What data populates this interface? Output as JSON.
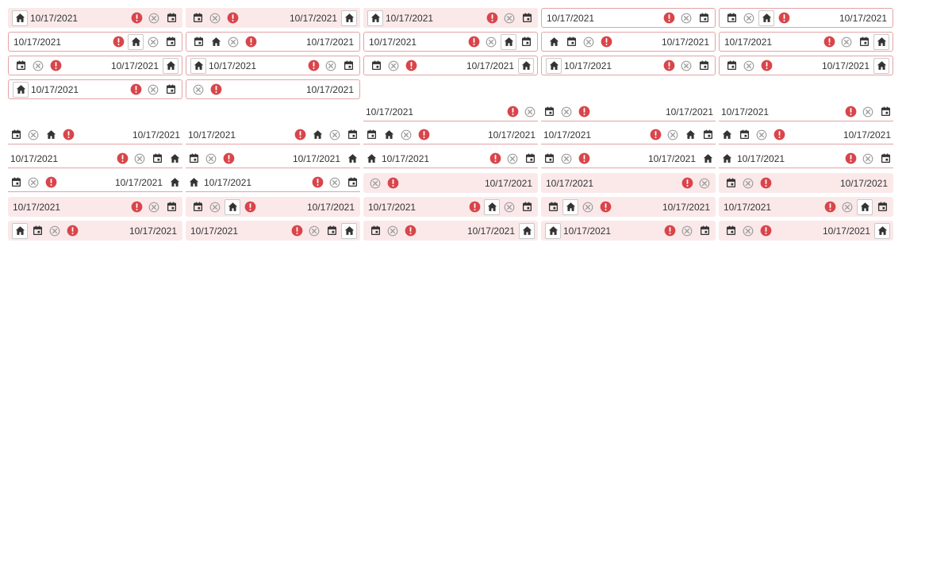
{
  "colors": {
    "accent_error": "#d9454a",
    "clear_icon": "#9e9e9e",
    "field_border": "#e4a3a6",
    "filled_background": "#fbe9ea",
    "icon_dark": "#333333"
  },
  "rows": [
    {
      "variant": "outline",
      "cells": [
        [
          "clear",
          "error",
          "sp",
          "val"
        ],
        [
          "val",
          "sp",
          "error",
          "clear"
        ],
        [
          "cal",
          "clear",
          "error",
          "sp",
          "val"
        ],
        [
          "val",
          "sp",
          "error",
          "clear",
          "cal"
        ],
        [
          "cal",
          "clear",
          "home*",
          "error",
          "sp",
          "val"
        ]
      ]
    },
    {
      "variant": "outline",
      "cells": [
        [
          "val",
          "sp",
          "error",
          "home*",
          "clear",
          "cal"
        ],
        [
          "cal",
          "home",
          "clear",
          "error",
          "sp",
          "val"
        ],
        [
          "val",
          "sp",
          "error",
          "clear",
          "home*",
          "cal"
        ],
        [
          "home",
          "cal",
          "clear",
          "error",
          "sp",
          "val"
        ],
        [
          "val",
          "sp",
          "error",
          "clear",
          "cal",
          "home*"
        ]
      ]
    },
    {
      "variant": "outline",
      "cells": [
        [
          "cal",
          "clear",
          "error",
          "sp",
          "val",
          "home*"
        ],
        [
          "home*",
          "val",
          "sp",
          "error",
          "clear",
          "cal"
        ],
        [
          "cal",
          "clear",
          "error",
          "sp",
          "val",
          "home*"
        ],
        [
          "home*",
          "val",
          "sp",
          "error",
          "clear",
          "cal"
        ],
        [
          "cal",
          "clear",
          "error",
          "sp",
          "val",
          "home*"
        ]
      ]
    },
    {
      "variant": "outline",
      "cells": [
        [
          "home*",
          "val",
          "sp",
          "error",
          "clear",
          "cal"
        ],
        [
          "clear",
          "error",
          "sp",
          "val"
        ]
      ]
    },
    {
      "variant": "underline",
      "cells": [
        [
          "val",
          "sp",
          "error",
          "clear"
        ],
        [
          "cal",
          "clear",
          "error",
          "sp",
          "val"
        ],
        [
          "val",
          "sp",
          "error",
          "clear",
          "cal"
        ]
      ],
      "start": 2
    },
    {
      "variant": "underline",
      "cells": [
        [
          "cal",
          "clear",
          "home",
          "error",
          "sp",
          "val"
        ],
        [
          "val",
          "sp",
          "error",
          "home",
          "clear",
          "cal"
        ],
        [
          "cal",
          "home",
          "clear",
          "error",
          "sp",
          "val"
        ],
        [
          "val",
          "sp",
          "error",
          "clear",
          "home",
          "cal"
        ],
        [
          "home",
          "cal",
          "clear",
          "error",
          "sp",
          "val"
        ]
      ]
    },
    {
      "variant": "underline",
      "cells": [
        [
          "val",
          "sp",
          "error",
          "clear",
          "cal",
          "home"
        ],
        [
          "cal",
          "clear",
          "error",
          "sp",
          "val",
          "home"
        ],
        [
          "home",
          "val",
          "sp",
          "error",
          "clear",
          "cal"
        ],
        [
          "cal",
          "clear",
          "error",
          "sp",
          "val",
          "home"
        ],
        [
          "home",
          "val",
          "sp",
          "error",
          "clear",
          "cal"
        ]
      ]
    },
    {
      "variant": "mixed",
      "cells": [
        {
          "v": "underline",
          "items": [
            "cal",
            "clear",
            "error",
            "sp",
            "val",
            "home"
          ]
        },
        {
          "v": "underline",
          "items": [
            "home",
            "val",
            "sp",
            "error",
            "clear",
            "cal"
          ]
        },
        {
          "v": "filled",
          "items": [
            "clear",
            "error",
            "sp",
            "val"
          ]
        },
        {
          "v": "filled",
          "items": [
            "val",
            "sp",
            "error",
            "clear"
          ]
        },
        {
          "v": "filled",
          "items": [
            "cal",
            "clear",
            "error",
            "sp",
            "val"
          ]
        }
      ]
    },
    {
      "variant": "filled",
      "cells": [
        [
          "val",
          "sp",
          "error",
          "clear",
          "cal"
        ],
        [
          "cal",
          "clear",
          "home*",
          "error",
          "sp",
          "val"
        ],
        [
          "val",
          "sp",
          "error",
          "home*",
          "clear",
          "cal"
        ],
        [
          "cal",
          "home*",
          "clear",
          "error",
          "sp",
          "val"
        ],
        [
          "val",
          "sp",
          "error",
          "clear",
          "home*",
          "cal"
        ]
      ]
    },
    {
      "variant": "filled",
      "cells": [
        [
          "home*",
          "cal",
          "clear",
          "error",
          "sp",
          "val"
        ],
        [
          "val",
          "sp",
          "error",
          "clear",
          "cal",
          "home*"
        ],
        [
          "cal",
          "clear",
          "error",
          "sp",
          "val",
          "home*"
        ],
        [
          "home*",
          "val",
          "sp",
          "error",
          "clear",
          "cal"
        ],
        [
          "cal",
          "clear",
          "error",
          "sp",
          "val",
          "home*"
        ]
      ]
    },
    {
      "variant": "filled",
      "cells": [
        [
          "home*",
          "val",
          "sp",
          "error",
          "clear",
          "cal"
        ],
        [
          "cal",
          "clear",
          "error",
          "sp",
          "val",
          "home*"
        ],
        [
          "home*",
          "val",
          "sp",
          "error",
          "clear",
          "cal"
        ]
      ]
    }
  ],
  "date_value": "10/17/2021"
}
